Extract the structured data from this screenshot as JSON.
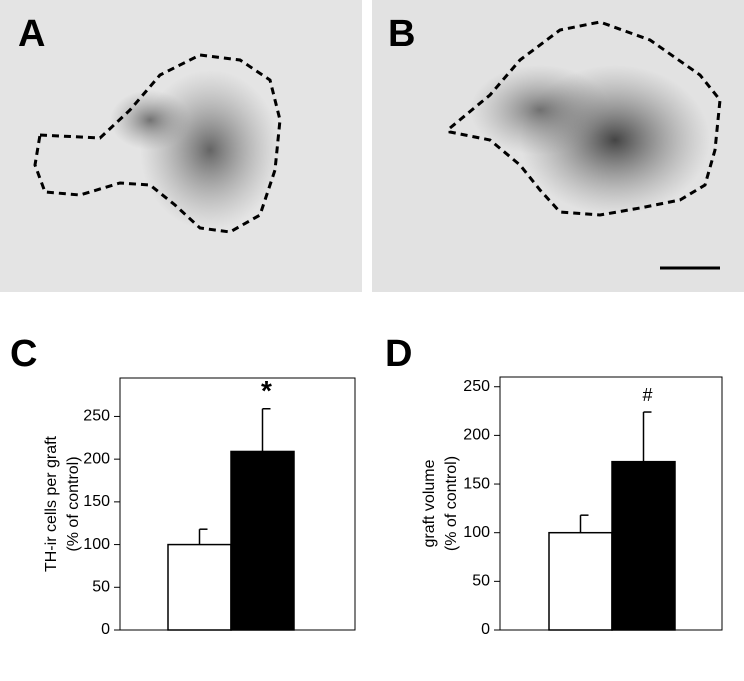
{
  "panels": [
    "A",
    "B"
  ],
  "chart_data": [
    {
      "type": "bar",
      "panel_label": "C",
      "ylabel": [
        "TH-ir cells per graft",
        "(% of control)"
      ],
      "values": [
        100,
        209
      ],
      "errors": [
        18,
        50
      ],
      "colors": [
        "#ffffff",
        "#000000"
      ],
      "ylim": [
        0,
        295
      ],
      "yticks": [
        0,
        50,
        100,
        150,
        200,
        250
      ],
      "annotations": [
        {
          "text": "*",
          "index": 1
        }
      ]
    },
    {
      "type": "bar",
      "panel_label": "D",
      "ylabel": [
        "graft volume",
        "(% of control)"
      ],
      "values": [
        100,
        173
      ],
      "errors": [
        18,
        51
      ],
      "colors": [
        "#ffffff",
        "#000000"
      ],
      "ylim": [
        0,
        260
      ],
      "yticks": [
        0,
        50,
        100,
        150,
        200,
        250
      ],
      "annotations": [
        {
          "text": "#",
          "index": 1
        }
      ]
    }
  ]
}
